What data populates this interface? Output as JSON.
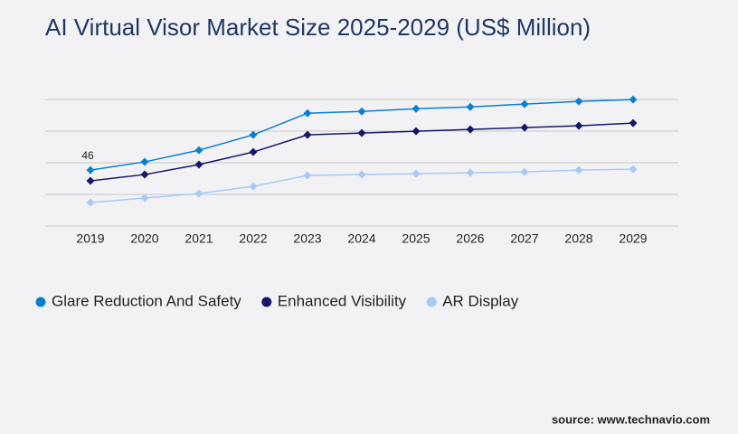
{
  "chart_data": {
    "type": "line",
    "title": "AI Virtual Visor Market Size 2025-2029 (US$ Million)",
    "categories": [
      "2019",
      "2020",
      "2021",
      "2022",
      "2023",
      "2024",
      "2025",
      "2026",
      "2027",
      "2028",
      "2029"
    ],
    "series": [
      {
        "name": "Glare Reduction And Safety",
        "color": "#0a7fd0",
        "values": [
          46,
          52.7,
          62.3,
          74.9,
          92.7,
          94.2,
          96.4,
          97.9,
          100.2,
          102.4,
          103.9
        ],
        "value_labels": [
          "46",
          null,
          null,
          null,
          null,
          null,
          null,
          null,
          null,
          null,
          null
        ]
      },
      {
        "name": "Enhanced Visibility",
        "color": "#16166a",
        "values": [
          37.1,
          42.3,
          50.5,
          60.8,
          74.9,
          76.4,
          77.9,
          79.4,
          80.9,
          82.4,
          84.6
        ]
      },
      {
        "name": "AR Display",
        "color": "#a8c8f8",
        "values": [
          19.3,
          23,
          26.7,
          32.6,
          41.6,
          42.3,
          43,
          43.8,
          44.5,
          46,
          46.7
        ]
      }
    ],
    "ylim": [
      0,
      104
    ],
    "grid": true,
    "source": "source: www.technavio.com"
  }
}
